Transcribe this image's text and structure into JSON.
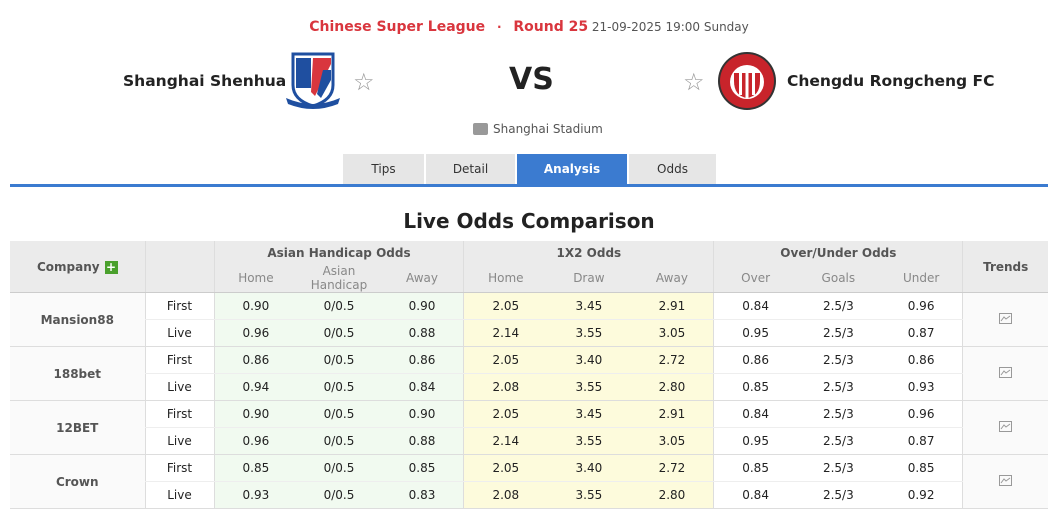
{
  "match": {
    "league": "Chinese Super League",
    "separator": "·",
    "round": "Round 25",
    "datetime": "21-09-2025 19:00 Sunday",
    "home": "Shanghai Shenhua",
    "away": "Chengdu Rongcheng FC",
    "vs": "VS",
    "venue": "Shanghai Stadium"
  },
  "tabs": [
    {
      "label": "Tips"
    },
    {
      "label": "Detail"
    },
    {
      "label": "Analysis",
      "active": true
    },
    {
      "label": "Odds"
    }
  ],
  "section_title": "Live Odds Comparison",
  "table": {
    "headers": {
      "company": "Company",
      "ah": "Asian Handicap Odds",
      "x2": "1X2 Odds",
      "ou": "Over/Under Odds",
      "trends": "Trends"
    },
    "sub": {
      "ah": [
        "Home",
        "Asian Handicap",
        "Away"
      ],
      "x2": [
        "Home",
        "Draw",
        "Away"
      ],
      "ou": [
        "Over",
        "Goals",
        "Under"
      ]
    },
    "rows": [
      {
        "company": "Mansion88",
        "first": [
          "0.90",
          "0/0.5",
          "0.90",
          "2.05",
          "3.45",
          "2.91",
          "0.84",
          "2.5/3",
          "0.96"
        ],
        "live": [
          "0.96",
          "0/0.5",
          "0.88",
          "2.14",
          "3.55",
          "3.05",
          "0.95",
          "2.5/3",
          "0.87"
        ]
      },
      {
        "company": "188bet",
        "first": [
          "0.86",
          "0/0.5",
          "0.86",
          "2.05",
          "3.40",
          "2.72",
          "0.86",
          "2.5/3",
          "0.86"
        ],
        "live": [
          "0.94",
          "0/0.5",
          "0.84",
          "2.08",
          "3.55",
          "2.80",
          "0.85",
          "2.5/3",
          "0.93"
        ]
      },
      {
        "company": "12BET",
        "first": [
          "0.90",
          "0/0.5",
          "0.90",
          "2.05",
          "3.45",
          "2.91",
          "0.84",
          "2.5/3",
          "0.96"
        ],
        "live": [
          "0.96",
          "0/0.5",
          "0.88",
          "2.14",
          "3.55",
          "3.05",
          "0.95",
          "2.5/3",
          "0.87"
        ]
      },
      {
        "company": "Crown",
        "first": [
          "0.85",
          "0/0.5",
          "0.85",
          "2.05",
          "3.40",
          "2.72",
          "0.85",
          "2.5/3",
          "0.85"
        ],
        "live": [
          "0.93",
          "0/0.5",
          "0.83",
          "2.08",
          "3.55",
          "2.80",
          "0.84",
          "2.5/3",
          "0.92"
        ]
      }
    ],
    "first_label": "First",
    "live_label": "Live"
  },
  "colors": {
    "league": "#d9363e",
    "accent": "#3b7bd0",
    "ah_bg": "#f1faf0",
    "x2_bg": "#fdfbdc"
  }
}
